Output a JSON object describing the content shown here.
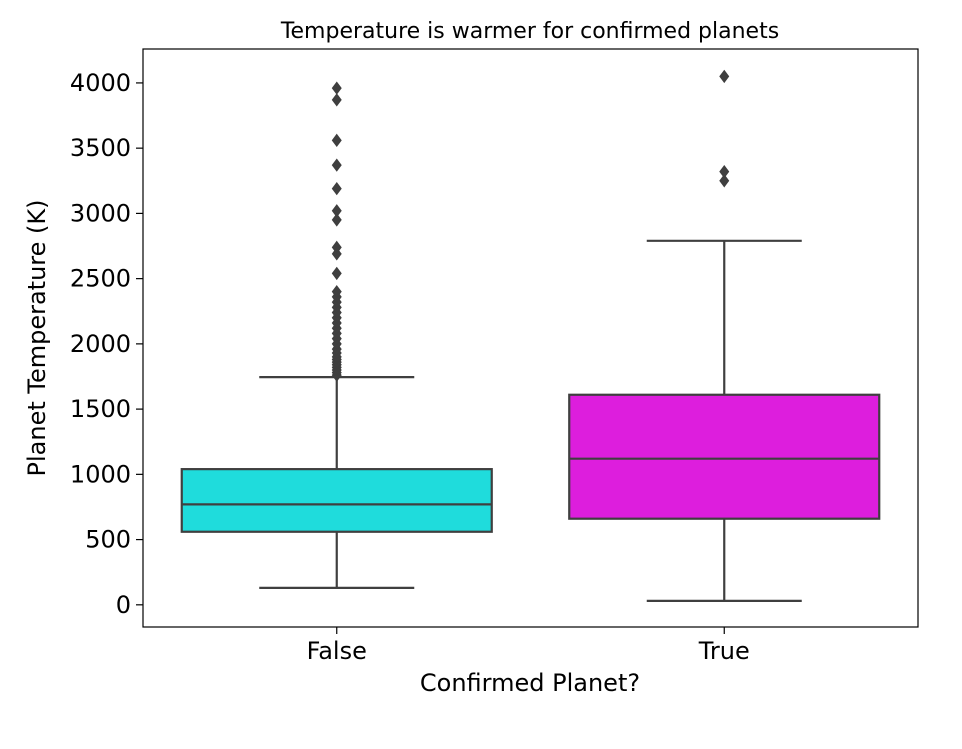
{
  "chart_data": {
    "type": "box",
    "title": "Temperature is warmer for confirmed planets",
    "xlabel": "Confirmed Planet?",
    "ylabel": "Planet Temperature (K)",
    "ylim": [
      -170,
      4260
    ],
    "yticks": [
      0,
      500,
      1000,
      1500,
      2000,
      2500,
      3000,
      3500,
      4000
    ],
    "grid": false,
    "legend": "none",
    "categories": [
      "False",
      "True"
    ],
    "boxes": [
      {
        "category": "False",
        "color": "#1fdcdc",
        "whisker_low": 130,
        "q1": 560,
        "median": 770,
        "q3": 1040,
        "whisker_high": 1745,
        "outliers": [
          1760,
          1780,
          1800,
          1820,
          1840,
          1860,
          1880,
          1900,
          1930,
          1960,
          2000,
          2040,
          2080,
          2120,
          2160,
          2200,
          2240,
          2280,
          2320,
          2360,
          2400,
          2540,
          2690,
          2740,
          2950,
          3020,
          3190,
          3370,
          3560,
          3870,
          3960
        ]
      },
      {
        "category": "True",
        "color": "#dd1edd",
        "whisker_low": 30,
        "q1": 660,
        "median": 1120,
        "q3": 1610,
        "whisker_high": 2790,
        "outliers": [
          3250,
          3320,
          4050
        ]
      }
    ]
  }
}
